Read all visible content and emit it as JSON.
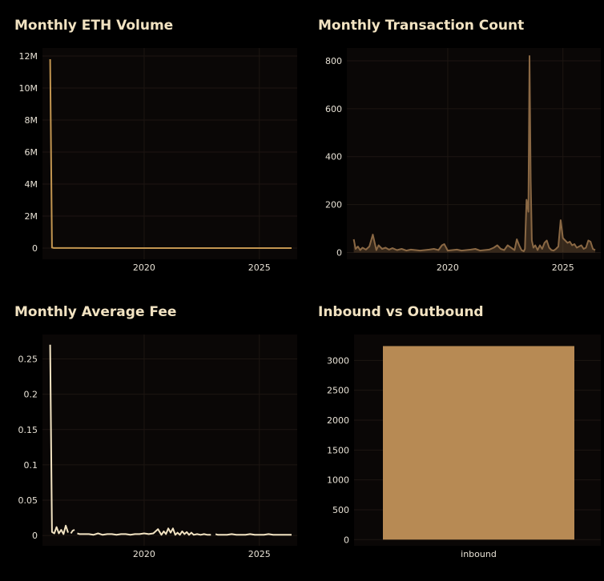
{
  "theme": {
    "background": "#000000",
    "plot_background": "#0a0706",
    "title_color": "#f2e3c2",
    "tick_color": "#e8e2d6",
    "grid_color": "#1d1612"
  },
  "chart_data": [
    {
      "type": "line",
      "title": "Monthly ETH Volume",
      "color": "#c29550",
      "xlim": [
        2015.9,
        2026.4
      ],
      "ylim": [
        -500000,
        12300000
      ],
      "xticks": [
        {
          "v": 2020,
          "label": "2020"
        },
        {
          "v": 2025,
          "label": "2025"
        }
      ],
      "yticks": [
        {
          "v": 0,
          "label": "0"
        },
        {
          "v": 2000000,
          "label": "2M"
        },
        {
          "v": 4000000,
          "label": "4M"
        },
        {
          "v": 6000000,
          "label": "6M"
        },
        {
          "v": 8000000,
          "label": "8M"
        },
        {
          "v": 10000000,
          "label": "10M"
        },
        {
          "v": 12000000,
          "label": "12M"
        }
      ],
      "x": [
        2015.92,
        2016.0,
        2016.08,
        2017,
        2018,
        2019,
        2020,
        2021,
        2022,
        2023,
        2024,
        2025,
        2026.4
      ],
      "y": [
        11800000,
        30000,
        5000,
        3000,
        2000,
        1000,
        1000,
        1000,
        1000,
        2000,
        2000,
        1000,
        1000
      ]
    },
    {
      "type": "area",
      "title": "Monthly Transaction Count",
      "color": "#8a6844",
      "xlim": [
        2015.9,
        2026.4
      ],
      "ylim": [
        -15,
        840
      ],
      "xticks": [
        {
          "v": 2020,
          "label": "2020"
        },
        {
          "v": 2025,
          "label": "2025"
        }
      ],
      "yticks": [
        {
          "v": 0,
          "label": "0"
        },
        {
          "v": 200,
          "label": "200"
        },
        {
          "v": 400,
          "label": "400"
        },
        {
          "v": 600,
          "label": "600"
        },
        {
          "v": 800,
          "label": "800"
        }
      ],
      "x": [
        2015.92,
        2016.0,
        2016.1,
        2016.2,
        2016.3,
        2016.45,
        2016.6,
        2016.75,
        2016.9,
        2017.0,
        2017.15,
        2017.3,
        2017.45,
        2017.6,
        2017.8,
        2018.0,
        2018.2,
        2018.4,
        2018.6,
        2018.8,
        2019.0,
        2019.2,
        2019.4,
        2019.6,
        2019.75,
        2019.85,
        2020.0,
        2020.2,
        2020.4,
        2020.6,
        2020.8,
        2021.0,
        2021.2,
        2021.4,
        2021.6,
        2021.8,
        2022.0,
        2022.15,
        2022.3,
        2022.45,
        2022.6,
        2022.75,
        2022.9,
        2023.0,
        2023.1,
        2023.2,
        2023.3,
        2023.35,
        2023.42,
        2023.5,
        2023.55,
        2023.6,
        2023.65,
        2023.72,
        2023.8,
        2023.9,
        2024.0,
        2024.1,
        2024.2,
        2024.3,
        2024.4,
        2024.5,
        2024.6,
        2024.7,
        2024.8,
        2024.9,
        2025.0,
        2025.1,
        2025.2,
        2025.3,
        2025.4,
        2025.5,
        2025.6,
        2025.7,
        2025.8,
        2025.9,
        2026.0,
        2026.1,
        2026.2,
        2026.3,
        2026.4
      ],
      "y": [
        55,
        15,
        25,
        10,
        20,
        12,
        25,
        75,
        10,
        30,
        15,
        20,
        12,
        18,
        10,
        15,
        8,
        12,
        10,
        8,
        10,
        12,
        15,
        10,
        30,
        35,
        8,
        10,
        12,
        8,
        10,
        12,
        15,
        8,
        10,
        12,
        20,
        30,
        15,
        10,
        30,
        20,
        10,
        55,
        30,
        10,
        5,
        15,
        220,
        170,
        820,
        300,
        50,
        20,
        30,
        10,
        30,
        15,
        40,
        50,
        20,
        10,
        8,
        15,
        25,
        135,
        60,
        50,
        40,
        45,
        30,
        35,
        20,
        25,
        30,
        15,
        20,
        50,
        45,
        15,
        10
      ]
    },
    {
      "type": "line",
      "title": "Monthly Average Fee",
      "color": "#f2e3c2",
      "xlim": [
        2015.9,
        2026.4
      ],
      "ylim": [
        -0.01,
        0.28
      ],
      "xticks": [
        {
          "v": 2020,
          "label": "2020"
        },
        {
          "v": 2025,
          "label": "2025"
        }
      ],
      "yticks": [
        {
          "v": 0,
          "label": "0"
        },
        {
          "v": 0.05,
          "label": "0.05"
        },
        {
          "v": 0.1,
          "label": "0.1"
        },
        {
          "v": 0.15,
          "label": "0.15"
        },
        {
          "v": 0.2,
          "label": "0.2"
        },
        {
          "v": 0.25,
          "label": "0.25"
        }
      ],
      "segments": [
        {
          "x": [
            2015.92,
            2016.0,
            2016.1,
            2016.2,
            2016.3,
            2016.4,
            2016.5,
            2016.6,
            2016.7
          ],
          "y": [
            0.27,
            0.005,
            0.003,
            0.012,
            0.003,
            0.008,
            0.002,
            0.014,
            0.004
          ]
        },
        {
          "x": [
            2016.82,
            2016.9,
            2016.98
          ],
          "y": [
            0.003,
            0.007,
            0.008
          ]
        },
        {
          "x": [
            2017.1,
            2017.2,
            2017.4,
            2017.6,
            2017.8,
            2018.0,
            2018.2,
            2018.4,
            2018.6,
            2018.8,
            2019.0,
            2019.2,
            2019.4,
            2019.6,
            2019.8,
            2020.0,
            2020.2,
            2020.4,
            2020.6,
            2020.75,
            2020.85,
            2020.95,
            2021.05,
            2021.15,
            2021.25,
            2021.35,
            2021.45,
            2021.55,
            2021.65,
            2021.75,
            2021.85,
            2021.95,
            2022.05,
            2022.15,
            2022.3,
            2022.45,
            2022.6,
            2022.75,
            2022.9
          ],
          "y": [
            0.003,
            0.002,
            0.002,
            0.002,
            0.001,
            0.003,
            0.001,
            0.002,
            0.002,
            0.001,
            0.002,
            0.002,
            0.001,
            0.002,
            0.002,
            0.003,
            0.002,
            0.003,
            0.009,
            0.001,
            0.006,
            0.002,
            0.01,
            0.004,
            0.01,
            0.001,
            0.004,
            0.001,
            0.006,
            0.002,
            0.005,
            0.001,
            0.004,
            0.001,
            0.002,
            0.001,
            0.002,
            0.001,
            0.001
          ]
        },
        {
          "x": [
            2023.1,
            2023.2,
            2023.4,
            2023.6,
            2023.8,
            2024.0,
            2024.2,
            2024.4,
            2024.6,
            2024.8,
            2025.0,
            2025.2,
            2025.4,
            2025.6,
            2025.8,
            2026.0,
            2026.2,
            2026.4
          ],
          "y": [
            0.002,
            0.001,
            0.001,
            0.001,
            0.002,
            0.001,
            0.001,
            0.001,
            0.002,
            0.001,
            0.001,
            0.001,
            0.002,
            0.001,
            0.001,
            0.001,
            0.001,
            0.001
          ]
        }
      ]
    },
    {
      "type": "bar",
      "title": "Inbound vs Outbound",
      "color": "#b78a54",
      "categories": [
        "inbound"
      ],
      "values": [
        3240
      ],
      "ylim": [
        -50,
        3380
      ],
      "yticks": [
        {
          "v": 0,
          "label": "0"
        },
        {
          "v": 500,
          "label": "500"
        },
        {
          "v": 1000,
          "label": "1000"
        },
        {
          "v": 1500,
          "label": "1500"
        },
        {
          "v": 2000,
          "label": "2000"
        },
        {
          "v": 2500,
          "label": "2500"
        },
        {
          "v": 3000,
          "label": "3000"
        }
      ]
    }
  ]
}
